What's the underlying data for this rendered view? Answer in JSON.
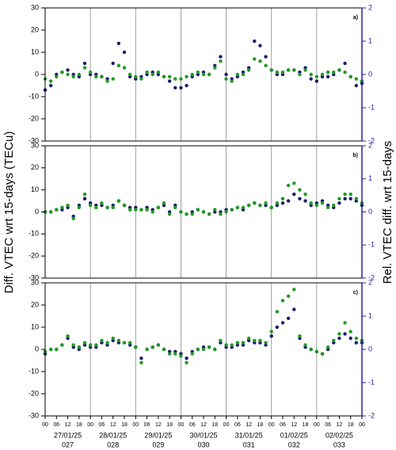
{
  "ylabel": "Diff. VTEC wrt 15-days (TECu)",
  "y2label": "Rel. VTEC diff. wrt 15-days",
  "chart_data": [
    {
      "type": "scatter",
      "label": "a)",
      "xlim": [
        0,
        168
      ],
      "ylim": [
        -30,
        30
      ],
      "yticks": [
        -30,
        -20,
        -10,
        0,
        10,
        20,
        30
      ],
      "y2lim": [
        -2,
        2
      ],
      "y2ticks": [
        -2,
        -1,
        0,
        1,
        2
      ],
      "vgrid": [
        24,
        48,
        72,
        96,
        120,
        144
      ],
      "x": [
        0,
        3,
        6,
        9,
        12,
        15,
        18,
        21,
        24,
        27,
        30,
        33,
        36,
        39,
        42,
        45,
        48,
        51,
        54,
        57,
        60,
        63,
        66,
        69,
        72,
        75,
        78,
        81,
        84,
        87,
        90,
        93,
        96,
        99,
        102,
        105,
        108,
        111,
        114,
        117,
        120,
        123,
        126,
        129,
        132,
        135,
        138,
        141,
        144,
        147,
        150,
        153,
        156,
        159,
        162,
        165,
        168
      ],
      "series": [
        {
          "color": "#1a1a6e",
          "values": [
            -7,
            -5,
            0,
            1,
            2,
            0,
            -1,
            5,
            0,
            0,
            -1,
            -2,
            5,
            14,
            10,
            -1,
            -2,
            -1,
            0,
            1,
            0,
            -1,
            -3,
            -6,
            -6,
            -5,
            -1,
            0,
            1,
            0,
            4,
            8,
            0,
            -2,
            -1,
            1,
            3,
            15,
            13,
            8,
            2,
            0,
            0,
            2,
            2,
            1,
            3,
            -2,
            -3,
            -1,
            -1,
            0,
            2,
            5,
            -1,
            -5,
            -4
          ]
        },
        {
          "color": "#1e9a1e",
          "values": [
            -2,
            -3,
            -1,
            1,
            0,
            -1,
            0,
            3,
            1,
            -1,
            -1,
            -3,
            -2,
            4,
            3,
            0,
            -1,
            -2,
            1,
            0,
            1,
            -1,
            -1,
            -2,
            -2,
            -1,
            0,
            1,
            0,
            0,
            3,
            6,
            -2,
            -3,
            0,
            0,
            2,
            7,
            6,
            4,
            2,
            1,
            1,
            2,
            2,
            0,
            2,
            0,
            -1,
            0,
            1,
            1,
            2,
            1,
            -1,
            -2,
            -3
          ]
        }
      ]
    },
    {
      "type": "scatter",
      "label": "b)",
      "xlim": [
        0,
        168
      ],
      "ylim": [
        -30,
        30
      ],
      "yticks": [
        -30,
        -20,
        -10,
        0,
        10,
        20,
        30
      ],
      "y2lim": [
        -2,
        2
      ],
      "y2ticks": [
        -2,
        -1,
        0,
        1,
        2
      ],
      "vgrid": [
        24,
        48,
        72,
        96,
        120,
        144
      ],
      "x": [
        0,
        3,
        6,
        9,
        12,
        15,
        18,
        21,
        24,
        27,
        30,
        33,
        36,
        39,
        42,
        45,
        48,
        51,
        54,
        57,
        60,
        63,
        66,
        69,
        72,
        75,
        78,
        81,
        84,
        87,
        90,
        93,
        96,
        99,
        102,
        105,
        108,
        111,
        114,
        117,
        120,
        123,
        126,
        129,
        132,
        135,
        138,
        141,
        144,
        147,
        150,
        153,
        156,
        159,
        162,
        165,
        168
      ],
      "series": [
        {
          "color": "#1a1a6e",
          "values": [
            0,
            0,
            1,
            1,
            2,
            -2,
            3,
            6,
            4,
            3,
            3,
            2,
            3,
            5,
            3,
            2,
            2,
            1,
            2,
            1,
            2,
            3,
            0,
            3,
            0,
            -1,
            0,
            1,
            0,
            -1,
            0,
            0,
            1,
            1,
            2,
            1,
            3,
            4,
            3,
            3,
            2,
            3,
            4,
            5,
            8,
            6,
            5,
            3,
            4,
            5,
            3,
            2,
            4,
            6,
            6,
            5,
            3
          ]
        },
        {
          "color": "#1e9a1e",
          "values": [
            0,
            0,
            1,
            2,
            3,
            -3,
            2,
            8,
            3,
            2,
            4,
            2,
            2,
            5,
            3,
            1,
            1,
            1,
            1,
            0,
            2,
            4,
            -1,
            2,
            0,
            -1,
            -1,
            1,
            0,
            -1,
            1,
            -1,
            0,
            1,
            2,
            2,
            3,
            4,
            3,
            4,
            2,
            4,
            6,
            12,
            13,
            10,
            8,
            4,
            3,
            4,
            2,
            3,
            6,
            8,
            8,
            6,
            4
          ]
        }
      ]
    },
    {
      "type": "scatter",
      "label": "c)",
      "xlim": [
        0,
        168
      ],
      "ylim": [
        -30,
        30
      ],
      "yticks": [
        -30,
        -20,
        -10,
        0,
        10,
        20,
        30
      ],
      "y2lim": [
        -2,
        2
      ],
      "y2ticks": [
        -2,
        -1,
        0,
        1,
        2
      ],
      "vgrid": [
        24,
        48,
        72,
        96,
        120,
        144
      ],
      "x": [
        0,
        3,
        6,
        9,
        12,
        15,
        18,
        21,
        24,
        27,
        30,
        33,
        36,
        39,
        42,
        45,
        48,
        51,
        54,
        57,
        60,
        63,
        66,
        69,
        72,
        75,
        78,
        81,
        84,
        87,
        90,
        93,
        96,
        99,
        102,
        105,
        108,
        111,
        114,
        117,
        120,
        123,
        126,
        129,
        132,
        135,
        138,
        141,
        144,
        147,
        150,
        153,
        156,
        159,
        162,
        165,
        168
      ],
      "series": [
        {
          "color": "#1a1a6e",
          "values": [
            -2,
            0,
            0,
            2,
            5,
            1,
            0,
            2,
            1,
            1,
            3,
            2,
            4,
            3,
            3,
            2,
            1,
            -4,
            0,
            1,
            2,
            0,
            -1,
            -1,
            -2,
            -4,
            -1,
            0,
            1,
            1,
            0,
            3,
            1,
            1,
            2,
            2,
            4,
            3,
            3,
            2,
            6,
            10,
            12,
            14,
            18,
            5,
            1,
            0,
            -1,
            -2,
            0,
            3,
            5,
            7,
            5,
            3,
            3
          ]
        },
        {
          "color": "#1e9a1e",
          "values": [
            -1,
            0,
            0,
            2,
            6,
            2,
            1,
            3,
            2,
            2,
            4,
            3,
            5,
            4,
            3,
            3,
            1,
            -6,
            0,
            1,
            2,
            0,
            -2,
            -2,
            -3,
            -6,
            -2,
            0,
            0,
            1,
            0,
            4,
            2,
            2,
            3,
            3,
            5,
            4,
            4,
            3,
            8,
            17,
            22,
            24,
            27,
            6,
            2,
            0,
            -1,
            -2,
            1,
            4,
            7,
            12,
            8,
            5,
            4
          ]
        }
      ],
      "xticks": [
        {
          "value": 0,
          "label": "00"
        },
        {
          "value": 6,
          "label": "06"
        },
        {
          "value": 12,
          "label": "12"
        },
        {
          "value": 18,
          "label": "18"
        },
        {
          "value": 24,
          "label": "00"
        },
        {
          "value": 30,
          "label": "06"
        },
        {
          "value": 36,
          "label": "12"
        },
        {
          "value": 42,
          "label": "18"
        },
        {
          "value": 48,
          "label": "00"
        },
        {
          "value": 54,
          "label": "06"
        },
        {
          "value": 60,
          "label": "12"
        },
        {
          "value": 66,
          "label": "18"
        },
        {
          "value": 72,
          "label": "00"
        },
        {
          "value": 78,
          "label": "06"
        },
        {
          "value": 84,
          "label": "12"
        },
        {
          "value": 90,
          "label": "18"
        },
        {
          "value": 96,
          "label": "00"
        },
        {
          "value": 102,
          "label": "06"
        },
        {
          "value": 108,
          "label": "12"
        },
        {
          "value": 114,
          "label": "18"
        },
        {
          "value": 120,
          "label": "00"
        },
        {
          "value": 126,
          "label": "06"
        },
        {
          "value": 132,
          "label": "12"
        },
        {
          "value": 138,
          "label": "18"
        },
        {
          "value": 144,
          "label": "00"
        },
        {
          "value": 150,
          "label": "06"
        },
        {
          "value": 156,
          "label": "12"
        },
        {
          "value": 162,
          "label": "18"
        },
        {
          "value": 168,
          "label": "00"
        }
      ],
      "date_labels": [
        {
          "value": 12,
          "date": "27/01/25",
          "doy": "027"
        },
        {
          "value": 36,
          "date": "28/01/25",
          "doy": "028"
        },
        {
          "value": 60,
          "date": "29/01/25",
          "doy": "029"
        },
        {
          "value": 84,
          "date": "30/01/25",
          "doy": "030"
        },
        {
          "value": 108,
          "date": "31/01/25",
          "doy": "031"
        },
        {
          "value": 132,
          "date": "01/02/25",
          "doy": "032"
        },
        {
          "value": 156,
          "date": "02/02/25",
          "doy": "033"
        }
      ]
    }
  ]
}
